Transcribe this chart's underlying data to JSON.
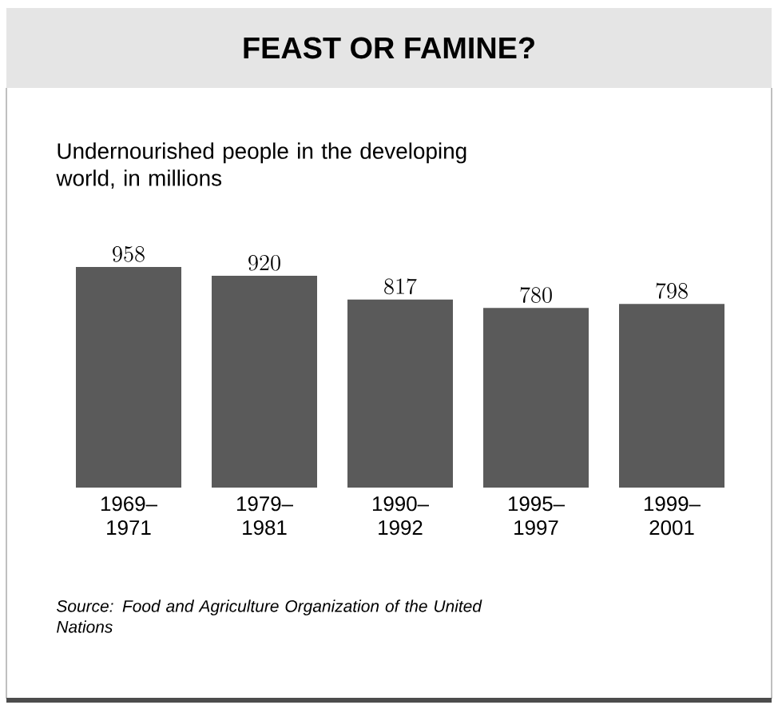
{
  "chart_data": {
    "type": "bar",
    "title": "FEAST OR FAMINE?",
    "subtitle": "Undernourished people in the developing world, in millions",
    "categories": [
      "1969–1971",
      "1979–1981",
      "1990–1992",
      "1995–1997",
      "1999–2001"
    ],
    "values": [
      958,
      920,
      817,
      780,
      798
    ],
    "color": "#5a5a5a",
    "data_labels": true,
    "annotations": [
      "*Source: Food and Agriculture Organization of the United Nations*"
    ]
  }
}
